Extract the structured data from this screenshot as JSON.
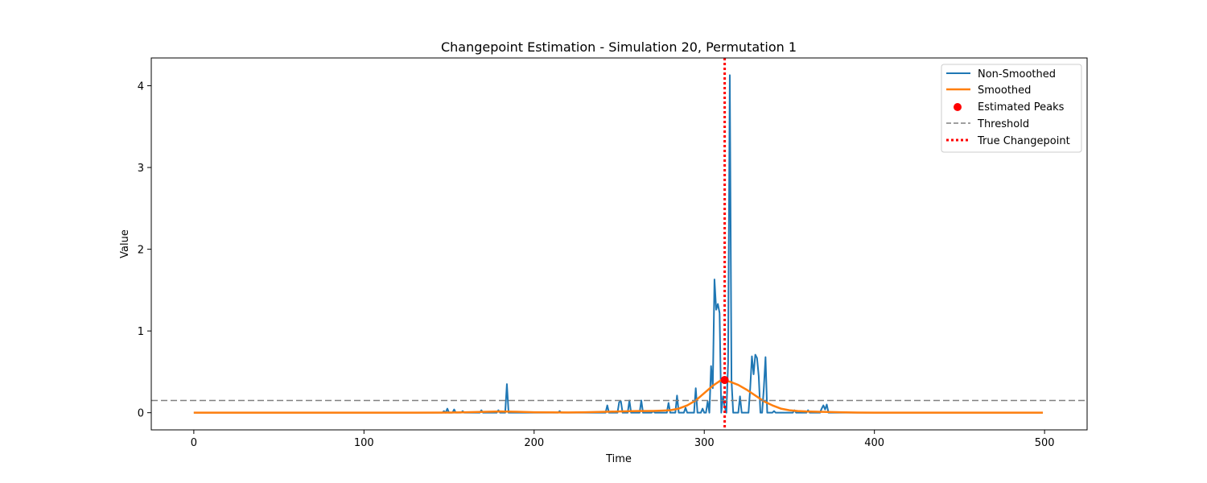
{
  "chart_data": {
    "type": "line",
    "title": "Changepoint Estimation - Simulation 20, Permutation 1",
    "xlabel": "Time",
    "ylabel": "Value",
    "xlim": [
      -25,
      525
    ],
    "ylim": [
      -0.21,
      4.34
    ],
    "x_ticks": [
      0,
      100,
      200,
      300,
      400,
      500
    ],
    "y_ticks": [
      0,
      1,
      2,
      3,
      4
    ],
    "grid": false,
    "legend_position": "top-right",
    "legend": [
      "Non-Smoothed",
      "Smoothed",
      "Estimated Peaks",
      "Threshold",
      "True Changepoint"
    ],
    "colors": {
      "non_smoothed": "#1f77b4",
      "smoothed": "#ff7f0e",
      "peaks": "#ff0000",
      "threshold": "#808080",
      "changepoint": "#ff0000"
    },
    "non_smoothed": {
      "name": "Non-Smoothed",
      "x_range": [
        0,
        499
      ],
      "spikes": [
        [
          147,
          0.02
        ],
        [
          149,
          0.05
        ],
        [
          153,
          0.04
        ],
        [
          158,
          0.02
        ],
        [
          169,
          0.03
        ],
        [
          179,
          0.03
        ],
        [
          184,
          0.35
        ],
        [
          215,
          0.02
        ],
        [
          243,
          0.09
        ],
        [
          250,
          0.13
        ],
        [
          251,
          0.14
        ],
        [
          256,
          0.15
        ],
        [
          263,
          0.15
        ],
        [
          270,
          0.02
        ],
        [
          279,
          0.12
        ],
        [
          284,
          0.21
        ],
        [
          289,
          0.06
        ],
        [
          295,
          0.3
        ],
        [
          299,
          0.05
        ],
        [
          302,
          0.14
        ],
        [
          304,
          0.57
        ],
        [
          305,
          0.3
        ],
        [
          306,
          1.63
        ],
        [
          307,
          1.26
        ],
        [
          308,
          1.33
        ],
        [
          309,
          1.22
        ],
        [
          311,
          0.2
        ],
        [
          312,
          0.07
        ],
        [
          314,
          0.6
        ],
        [
          315,
          4.13
        ],
        [
          316,
          0.4
        ],
        [
          321,
          0.2
        ],
        [
          327,
          0.3
        ],
        [
          328,
          0.69
        ],
        [
          329,
          0.47
        ],
        [
          330,
          0.71
        ],
        [
          331,
          0.67
        ],
        [
          332,
          0.45
        ],
        [
          335,
          0.3
        ],
        [
          336,
          0.68
        ],
        [
          341,
          0.02
        ],
        [
          353,
          0.03
        ],
        [
          361,
          0.03
        ],
        [
          369,
          0.05
        ],
        [
          370,
          0.09
        ],
        [
          371,
          0.04
        ],
        [
          372,
          0.1
        ]
      ]
    },
    "smoothed": {
      "name": "Smoothed",
      "x": [
        0,
        130,
        150,
        160,
        170,
        180,
        190,
        200,
        210,
        220,
        230,
        240,
        250,
        260,
        270,
        275,
        280,
        285,
        290,
        295,
        300,
        305,
        310,
        315,
        320,
        325,
        330,
        335,
        340,
        345,
        350,
        355,
        360,
        370,
        380,
        390,
        400,
        499
      ],
      "y": [
        0,
        0,
        0.002,
        0.005,
        0.01,
        0.015,
        0.012,
        0.006,
        0.004,
        0.003,
        0.006,
        0.01,
        0.015,
        0.02,
        0.022,
        0.025,
        0.03,
        0.05,
        0.09,
        0.15,
        0.24,
        0.33,
        0.4,
        0.38,
        0.34,
        0.28,
        0.21,
        0.14,
        0.09,
        0.05,
        0.03,
        0.02,
        0.015,
        0.01,
        0.005,
        0.002,
        0,
        0
      ]
    },
    "estimated_peaks": {
      "name": "Estimated Peaks",
      "points": [
        [
          312,
          0.4
        ]
      ]
    },
    "threshold": {
      "name": "Threshold",
      "value": 0.15
    },
    "true_changepoint": {
      "name": "True Changepoint",
      "value": 312
    }
  }
}
